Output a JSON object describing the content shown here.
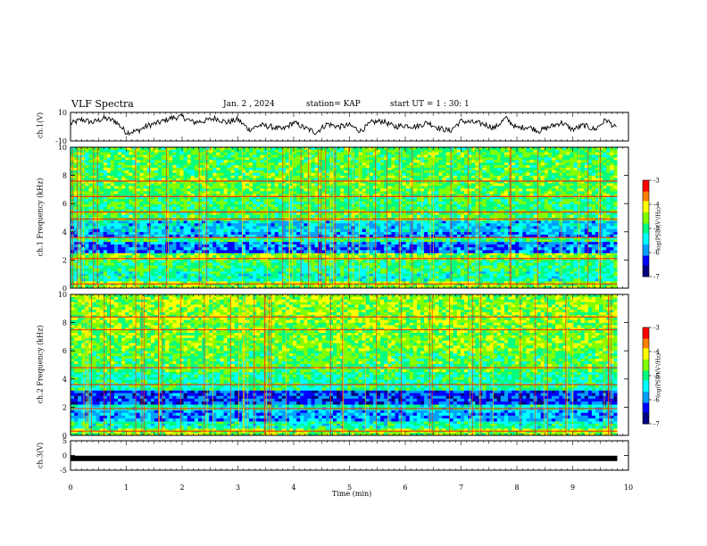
{
  "header": {
    "title": "VLF Spectra",
    "date": "Jan. 2 , 2024",
    "station": "station= KAP",
    "start": "start UT = 1 : 30: 1"
  },
  "colormap": [
    "#000080",
    "#0000ff",
    "#00a0ff",
    "#00ffff",
    "#00ff80",
    "#80ff00",
    "#ffff00",
    "#ff8000",
    "#ff0000"
  ],
  "chart_data": [
    {
      "type": "line",
      "name": "ch1-waveform",
      "ylabel": "ch.1(V)",
      "ylim": [
        -10,
        10
      ],
      "yticks": [
        "10",
        "-10"
      ],
      "xlim": [
        0,
        9.8
      ],
      "x": [
        0,
        0.2,
        0.4,
        0.6,
        0.8,
        1.0,
        1.2,
        1.4,
        1.6,
        1.8,
        2.0,
        2.2,
        2.4,
        2.6,
        2.8,
        3.0,
        3.2,
        3.4,
        3.6,
        3.8,
        4.0,
        4.2,
        4.4,
        4.6,
        4.8,
        5.0,
        5.2,
        5.4,
        5.6,
        5.8,
        6.0,
        6.2,
        6.4,
        6.6,
        6.8,
        7.0,
        7.2,
        7.4,
        7.6,
        7.8,
        8.0,
        8.2,
        8.4,
        8.6,
        8.8,
        9.0,
        9.2,
        9.4,
        9.6,
        9.8
      ],
      "y": [
        2,
        5,
        3,
        6,
        4,
        -4,
        -3,
        1,
        3,
        6,
        7,
        3,
        4,
        6,
        3,
        5,
        -2,
        1,
        0,
        -2,
        3,
        -1,
        -4,
        2,
        0,
        1,
        -3,
        3,
        4,
        0,
        1,
        0,
        3,
        -1,
        -3,
        4,
        3,
        2,
        -1,
        6,
        -1,
        0,
        -3,
        0,
        3,
        -2,
        1,
        -2,
        5,
        -2
      ]
    },
    {
      "type": "heatmap",
      "name": "ch1-spectrogram",
      "ylabel": "ch.1 Frequency (kHz)",
      "ylim": [
        0,
        10
      ],
      "yticks": [
        "0",
        "2",
        "4",
        "6",
        "8",
        "10"
      ],
      "xlim": [
        0,
        9.8
      ],
      "colorbar": {
        "label": "log(PSD)(V²/Hz)",
        "min": -7,
        "max": -3,
        "ticks": [
          "-3",
          "-4",
          "-5",
          "-6",
          "-7"
        ]
      },
      "bands_khz": [
        {
          "from": 0,
          "to": 0.5,
          "level": -4.5
        },
        {
          "from": 0.5,
          "to": 1.2,
          "level": -5.2
        },
        {
          "from": 1.2,
          "to": 2.0,
          "level": -5.0
        },
        {
          "from": 2.0,
          "to": 2.5,
          "level": -4.6
        },
        {
          "from": 2.5,
          "to": 3.3,
          "level": -6.0
        },
        {
          "from": 3.3,
          "to": 3.6,
          "level": -5.0
        },
        {
          "from": 3.6,
          "to": 4.0,
          "level": -5.8
        },
        {
          "from": 4.0,
          "to": 4.8,
          "level": -5.6
        },
        {
          "from": 4.8,
          "to": 5.4,
          "level": -4.8
        },
        {
          "from": 5.4,
          "to": 6.5,
          "level": -4.9
        },
        {
          "from": 6.5,
          "to": 8.0,
          "level": -4.7
        },
        {
          "from": 8.0,
          "to": 10.0,
          "level": -4.8
        }
      ],
      "lines_khz": [
        0.3,
        2.1,
        3.6,
        4.9,
        5.4,
        6.5,
        7.6
      ]
    },
    {
      "type": "heatmap",
      "name": "ch2-spectrogram",
      "ylabel": "ch.2 Frequency (kHz)",
      "ylim": [
        0,
        10
      ],
      "yticks": [
        "0",
        "2",
        "4",
        "6",
        "8",
        "10"
      ],
      "xlim": [
        0,
        9.8
      ],
      "colorbar": {
        "label": "log(PSD)(V²/Hz)",
        "min": -7,
        "max": -3,
        "ticks": [
          "-3",
          "-4",
          "-5",
          "-6",
          "-7"
        ]
      },
      "bands_khz": [
        {
          "from": 0,
          "to": 0.5,
          "level": -4.5
        },
        {
          "from": 0.5,
          "to": 1.0,
          "level": -5.2
        },
        {
          "from": 1.0,
          "to": 1.8,
          "level": -5.8
        },
        {
          "from": 1.8,
          "to": 2.2,
          "level": -5.3
        },
        {
          "from": 2.2,
          "to": 3.2,
          "level": -6.2
        },
        {
          "from": 3.2,
          "to": 4.5,
          "level": -5.1
        },
        {
          "from": 4.5,
          "to": 6.0,
          "level": -4.8
        },
        {
          "from": 6.0,
          "to": 8.0,
          "level": -4.6
        },
        {
          "from": 8.0,
          "to": 10.0,
          "level": -4.5
        }
      ],
      "lines_khz": [
        0.3,
        1.9,
        3.6,
        4.8,
        7.5,
        8.4
      ]
    },
    {
      "type": "line",
      "name": "ch3-waveform",
      "ylabel": "ch.3(V)",
      "ylim": [
        -5,
        5
      ],
      "yticks": [
        "5",
        "0",
        "-5"
      ],
      "xlim": [
        0,
        9.8
      ],
      "x": [
        0,
        9.8
      ],
      "y": [
        -1,
        -1
      ],
      "xlabel": "Time (min)",
      "xticks": [
        "0",
        "1",
        "2",
        "3",
        "4",
        "5",
        "6",
        "7",
        "8",
        "9",
        "10"
      ],
      "xrange": [
        0,
        10
      ]
    }
  ]
}
